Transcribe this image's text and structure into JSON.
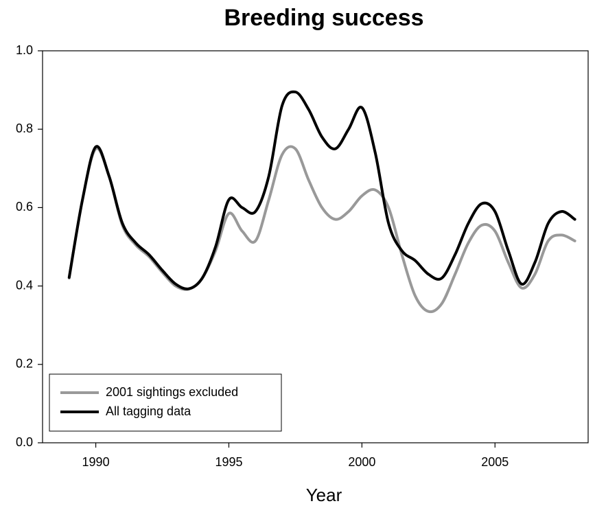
{
  "chart_data": {
    "type": "line",
    "title": "Breeding success",
    "x_label": "Year",
    "x": [
      1989,
      1989.5,
      1990,
      1990.5,
      1991,
      1991.5,
      1992,
      1992.5,
      1993,
      1993.5,
      1994,
      1994.5,
      1995,
      1995.5,
      1996,
      1996.5,
      1997,
      1997.5,
      1998,
      1998.5,
      1999,
      1999.5,
      2000,
      2000.5,
      2001,
      2001.5,
      2002,
      2002.5,
      2003,
      2003.5,
      2004,
      2004.5,
      2005,
      2005.5,
      2006,
      2006.5,
      2007,
      2007.5,
      2008
    ],
    "series": [
      {
        "name": "2001 sightings excluded",
        "color": "#999999",
        "values": [
          0.42,
          0.62,
          0.75,
          0.68,
          0.555,
          0.505,
          0.475,
          0.435,
          0.4,
          0.392,
          0.42,
          0.49,
          0.585,
          0.54,
          0.515,
          0.62,
          0.735,
          0.75,
          0.67,
          0.6,
          0.57,
          0.59,
          0.63,
          0.645,
          0.6,
          0.48,
          0.375,
          0.335,
          0.355,
          0.43,
          0.51,
          0.555,
          0.54,
          0.46,
          0.395,
          0.43,
          0.515,
          0.53,
          0.515
        ]
      },
      {
        "name": "All tagging data",
        "color": "#000000",
        "values": [
          0.422,
          0.62,
          0.755,
          0.68,
          0.56,
          0.51,
          0.48,
          0.44,
          0.405,
          0.393,
          0.42,
          0.5,
          0.62,
          0.6,
          0.59,
          0.68,
          0.86,
          0.895,
          0.85,
          0.78,
          0.75,
          0.8,
          0.855,
          0.74,
          0.56,
          0.49,
          0.465,
          0.43,
          0.42,
          0.48,
          0.56,
          0.61,
          0.59,
          0.49,
          0.405,
          0.46,
          0.56,
          0.59,
          0.57
        ]
      }
    ],
    "xlim": [
      1988,
      2008.5
    ],
    "ylim": [
      0,
      1
    ],
    "xticks": [
      1990,
      1995,
      2000,
      2005
    ],
    "yticks": [
      {
        "value": 0,
        "label": "0.0"
      },
      0.2,
      0.4,
      0.6,
      0.8,
      {
        "value": 1,
        "label": "1.0"
      }
    ],
    "legend": "lower left",
    "grid": false
  }
}
